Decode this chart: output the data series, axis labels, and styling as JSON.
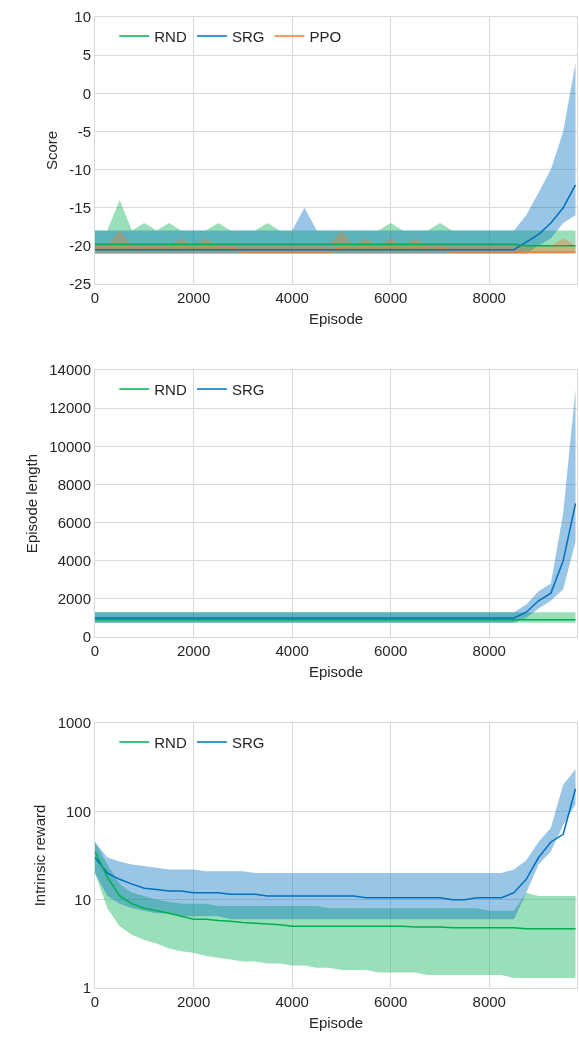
{
  "chart_data": [
    {
      "type": "line",
      "xlabel": "Episode",
      "ylabel": "Score",
      "xlim": [
        0,
        9780
      ],
      "xticks": [
        0,
        2000,
        4000,
        6000,
        8000
      ],
      "ylim": [
        -25,
        10
      ],
      "yticks": [
        -25,
        -20,
        -15,
        -10,
        -5,
        0,
        5,
        10
      ],
      "grid": true,
      "legend": "top left",
      "x": [
        0,
        250,
        500,
        750,
        1000,
        1250,
        1500,
        1750,
        2000,
        2250,
        2500,
        2750,
        3000,
        3250,
        3500,
        3750,
        4000,
        4250,
        4500,
        4750,
        5000,
        5250,
        5500,
        5750,
        6000,
        6250,
        6500,
        6750,
        7000,
        7250,
        7500,
        7750,
        8000,
        8250,
        8500,
        8750,
        9000,
        9250,
        9500,
        9750
      ],
      "series": [
        {
          "name": "RND",
          "color": "#00b050",
          "values": [
            -19.8,
            -19.8,
            -19.8,
            -19.8,
            -19.8,
            -19.8,
            -19.8,
            -19.8,
            -19.8,
            -19.8,
            -19.8,
            -19.8,
            -19.8,
            -19.8,
            -19.8,
            -19.8,
            -19.8,
            -19.8,
            -19.8,
            -19.8,
            -19.8,
            -19.8,
            -19.8,
            -19.8,
            -19.8,
            -19.8,
            -19.8,
            -19.8,
            -19.8,
            -19.8,
            -19.8,
            -19.8,
            -19.8,
            -19.8,
            -19.8,
            -20,
            -20,
            -20,
            -20,
            -20
          ],
          "lower": [
            -21,
            -21,
            -21,
            -21,
            -21,
            -21,
            -21,
            -21,
            -21,
            -21,
            -21,
            -21,
            -21,
            -21,
            -21,
            -21,
            -21,
            -21,
            -21,
            -21,
            -21,
            -21,
            -21,
            -21,
            -21,
            -21,
            -21,
            -21,
            -21,
            -21,
            -21,
            -21,
            -21,
            -21,
            -21,
            -21,
            -21,
            -21,
            -21,
            -21
          ],
          "upper": [
            -18,
            -18,
            -14,
            -18,
            -17,
            -18,
            -17,
            -18,
            -18,
            -18,
            -17,
            -18,
            -18,
            -18,
            -17,
            -18,
            -18,
            -18,
            -18,
            -18,
            -18,
            -18,
            -18,
            -18,
            -17,
            -18,
            -18,
            -18,
            -17,
            -18,
            -18,
            -18,
            -18,
            -18,
            -18,
            -18,
            -18,
            -18,
            -18,
            -18
          ]
        },
        {
          "name": "SRG",
          "color": "#0070c0",
          "values": [
            -20.5,
            -20.5,
            -20.5,
            -20.5,
            -20.5,
            -20.5,
            -20.5,
            -20.5,
            -20.5,
            -20.5,
            -20.5,
            -20.5,
            -20.5,
            -20.5,
            -20.5,
            -20.5,
            -20.5,
            -20.5,
            -20.5,
            -20.5,
            -20.5,
            -20.5,
            -20.5,
            -20.5,
            -20.5,
            -20.5,
            -20.5,
            -20.5,
            -20.5,
            -20.5,
            -20.5,
            -20.5,
            -20.5,
            -20.5,
            -20.5,
            -19.5,
            -18.5,
            -17,
            -15,
            -12
          ],
          "lower": [
            -21,
            -21,
            -21,
            -21,
            -21,
            -21,
            -21,
            -21,
            -21,
            -21,
            -21,
            -21,
            -21,
            -21,
            -21,
            -21,
            -21,
            -21,
            -21,
            -21,
            -21,
            -21,
            -21,
            -21,
            -21,
            -21,
            -21,
            -21,
            -21,
            -21,
            -21,
            -21,
            -21,
            -21,
            -21,
            -21,
            -20,
            -19,
            -17,
            -16
          ],
          "upper": [
            -18,
            -18,
            -18,
            -18,
            -18,
            -18,
            -18,
            -18,
            -18,
            -18,
            -18,
            -18,
            -18,
            -18,
            -18,
            -18,
            -18,
            -15,
            -18,
            -18,
            -18,
            -18,
            -18,
            -18,
            -18,
            -18,
            -18,
            -18,
            -18,
            -18,
            -18,
            -18,
            -18,
            -18,
            -18,
            -16,
            -13,
            -10,
            -5,
            4
          ]
        },
        {
          "name": "PPO",
          "color": "#ed7d31",
          "values": [
            -20.2,
            -20.2,
            -20.2,
            -20.2,
            -20.2,
            -20.2,
            -20.2,
            -20.2,
            -20.2,
            -20.2,
            -20.2,
            -20.2,
            -20.8,
            -20.8,
            -20.8,
            -20.8,
            -20.8,
            -20.8,
            -20.8,
            -20.8,
            -20.2,
            -20.2,
            -20.2,
            -20.2,
            -20.2,
            -20.2,
            -20.2,
            -20.2,
            -20.2,
            -20.8,
            -20.8,
            -20.8,
            -20.8,
            -20.8,
            -20.8,
            -20.8,
            -20.8,
            -20.8,
            -20.8,
            -20.8
          ],
          "lower": [
            -21,
            -21,
            -21,
            -21,
            -21,
            -21,
            -21,
            -21,
            -21,
            -21,
            -21,
            -21,
            -21,
            -21,
            -21,
            -21,
            -21,
            -21,
            -21,
            -21,
            -21,
            -21,
            -21,
            -21,
            -21,
            -21,
            -21,
            -21,
            -21,
            -21,
            -21,
            -21,
            -21,
            -21,
            -21,
            -21,
            -21,
            -21,
            -21,
            -21
          ],
          "upper": [
            -20,
            -20,
            -18,
            -20,
            -20,
            -20,
            -20,
            -19,
            -20,
            -19,
            -20,
            -20,
            -20,
            -20,
            -20,
            -20,
            -20,
            -20,
            -20,
            -20,
            -18,
            -20,
            -19,
            -20,
            -19,
            -20,
            -19,
            -20,
            -20,
            -20,
            -20,
            -20,
            -20,
            -20,
            -20,
            -20,
            -20,
            -20,
            -19,
            -20
          ]
        }
      ]
    },
    {
      "type": "line",
      "xlabel": "Episode",
      "ylabel": "Episode length",
      "xlim": [
        0,
        9780
      ],
      "xticks": [
        0,
        2000,
        4000,
        6000,
        8000
      ],
      "ylim": [
        0,
        14000
      ],
      "yticks": [
        0,
        2000,
        4000,
        6000,
        8000,
        10000,
        12000,
        14000
      ],
      "grid": true,
      "legend": "top left",
      "x": [
        0,
        250,
        500,
        750,
        1000,
        1250,
        1500,
        1750,
        2000,
        2250,
        2500,
        2750,
        3000,
        3250,
        3500,
        3750,
        4000,
        4250,
        4500,
        4750,
        5000,
        5250,
        5500,
        5750,
        6000,
        6250,
        6500,
        6750,
        7000,
        7250,
        7500,
        7750,
        8000,
        8250,
        8500,
        8750,
        9000,
        9250,
        9500,
        9750
      ],
      "series": [
        {
          "name": "RND",
          "color": "#00b050",
          "values": [
            900,
            900,
            900,
            900,
            900,
            900,
            900,
            900,
            900,
            900,
            900,
            900,
            900,
            900,
            900,
            900,
            900,
            900,
            900,
            900,
            900,
            900,
            900,
            900,
            900,
            900,
            900,
            900,
            900,
            900,
            900,
            900,
            900,
            900,
            900,
            900,
            900,
            900,
            900,
            900
          ],
          "lower": [
            750,
            750,
            750,
            750,
            750,
            750,
            750,
            750,
            750,
            750,
            750,
            750,
            750,
            750,
            750,
            750,
            750,
            750,
            750,
            750,
            750,
            750,
            750,
            750,
            750,
            750,
            750,
            750,
            750,
            750,
            750,
            750,
            750,
            750,
            750,
            750,
            750,
            750,
            750,
            750
          ],
          "upper": [
            1300,
            1300,
            1300,
            1300,
            1300,
            1300,
            1300,
            1300,
            1300,
            1300,
            1300,
            1300,
            1300,
            1300,
            1300,
            1300,
            1300,
            1300,
            1300,
            1300,
            1300,
            1300,
            1300,
            1300,
            1300,
            1300,
            1300,
            1300,
            1300,
            1300,
            1300,
            1300,
            1300,
            1300,
            1300,
            1300,
            1300,
            1300,
            1300,
            1300
          ]
        },
        {
          "name": "SRG",
          "color": "#0070c0",
          "values": [
            1000,
            1000,
            1000,
            1000,
            1000,
            1000,
            1000,
            1000,
            1000,
            1000,
            1000,
            1000,
            1000,
            1000,
            1000,
            1000,
            1000,
            1000,
            1000,
            1000,
            1000,
            1000,
            1000,
            1000,
            1000,
            1000,
            1000,
            1000,
            1000,
            1000,
            1000,
            1000,
            1000,
            1000,
            1000,
            1300,
            1900,
            2300,
            4000,
            7000
          ],
          "lower": [
            750,
            750,
            750,
            750,
            750,
            750,
            750,
            750,
            750,
            750,
            750,
            750,
            750,
            750,
            750,
            750,
            750,
            750,
            750,
            750,
            750,
            750,
            750,
            750,
            750,
            750,
            750,
            750,
            750,
            750,
            750,
            750,
            750,
            750,
            750,
            1000,
            1500,
            1900,
            2500,
            5000
          ],
          "upper": [
            1300,
            1300,
            1300,
            1300,
            1300,
            1300,
            1300,
            1300,
            1300,
            1300,
            1300,
            1300,
            1300,
            1300,
            1300,
            1300,
            1300,
            1300,
            1300,
            1300,
            1300,
            1300,
            1300,
            1300,
            1300,
            1300,
            1300,
            1300,
            1300,
            1300,
            1300,
            1300,
            1300,
            1300,
            1300,
            1700,
            2400,
            2800,
            6500,
            13000
          ]
        }
      ]
    },
    {
      "type": "line",
      "xlabel": "Episode",
      "ylabel": "Intrinsic reward",
      "log": true,
      "xlim": [
        0,
        9780
      ],
      "xticks": [
        0,
        2000,
        4000,
        6000,
        8000
      ],
      "ylim": [
        1,
        1000
      ],
      "yticks": [
        1,
        10,
        100,
        1000
      ],
      "grid": true,
      "legend": "top left",
      "x": [
        0,
        250,
        500,
        750,
        1000,
        1250,
        1500,
        1750,
        2000,
        2250,
        2500,
        2750,
        3000,
        3250,
        3500,
        3750,
        4000,
        4250,
        4500,
        4750,
        5000,
        5250,
        5500,
        5750,
        6000,
        6250,
        6500,
        6750,
        7000,
        7250,
        7500,
        7750,
        8000,
        8250,
        8500,
        8750,
        9000,
        9250,
        9500,
        9750
      ],
      "series": [
        {
          "name": "RND",
          "color": "#00b050",
          "values": [
            35,
            18,
            11,
            9,
            8,
            7.5,
            7,
            6.5,
            6,
            6,
            5.8,
            5.7,
            5.5,
            5.4,
            5.3,
            5.2,
            5,
            5,
            5,
            5,
            5,
            5,
            5,
            5,
            5,
            5,
            4.9,
            4.9,
            4.9,
            4.8,
            4.8,
            4.8,
            4.8,
            4.8,
            4.8,
            4.7,
            4.7,
            4.7,
            4.7,
            4.7
          ],
          "lower": [
            20,
            8,
            5,
            4,
            3.5,
            3.2,
            2.8,
            2.6,
            2.5,
            2.3,
            2.2,
            2.1,
            2,
            2,
            1.9,
            1.9,
            1.8,
            1.8,
            1.7,
            1.7,
            1.6,
            1.6,
            1.6,
            1.5,
            1.5,
            1.5,
            1.5,
            1.4,
            1.4,
            1.4,
            1.4,
            1.4,
            1.4,
            1.4,
            1.3,
            1.3,
            1.3,
            1.3,
            1.3,
            1.3
          ],
          "upper": [
            45,
            25,
            15,
            12,
            11,
            10,
            9.5,
            9,
            9,
            9,
            8.5,
            8.5,
            8.5,
            8.5,
            8.5,
            8.5,
            8.5,
            8.5,
            8.5,
            8,
            8,
            8,
            8,
            8,
            8,
            8,
            8,
            8,
            8,
            8,
            8,
            8,
            7.5,
            7.5,
            7.5,
            12,
            11,
            11,
            11,
            11
          ]
        },
        {
          "name": "SRG",
          "color": "#0070c0",
          "values": [
            30,
            20,
            17,
            15,
            13.5,
            13,
            12.5,
            12.5,
            12,
            12,
            12,
            11.5,
            11.5,
            11.5,
            11,
            11,
            11,
            11,
            11,
            11,
            11,
            11,
            10.5,
            10.5,
            10.5,
            10.5,
            10.5,
            10.5,
            10.5,
            10,
            10,
            10.5,
            10.5,
            10.5,
            12,
            17,
            30,
            45,
            55,
            180
          ],
          "lower": [
            20,
            11,
            9,
            8,
            7.5,
            7,
            7,
            6.5,
            6.5,
            6.5,
            6.5,
            6,
            6,
            6,
            6,
            6,
            6,
            6,
            6,
            6,
            6,
            6,
            6,
            6,
            6,
            6,
            6,
            6,
            6,
            6,
            6,
            6,
            6,
            6,
            6,
            12,
            25,
            35,
            70,
            120
          ],
          "upper": [
            45,
            30,
            27,
            25,
            24,
            23,
            22,
            22,
            22,
            21,
            21,
            21,
            21,
            20,
            20,
            20,
            20,
            20,
            20,
            20,
            20,
            20,
            20,
            20,
            20,
            20,
            20,
            20,
            20,
            20,
            20,
            20,
            20,
            20,
            22,
            28,
            45,
            65,
            200,
            300
          ]
        }
      ]
    }
  ]
}
